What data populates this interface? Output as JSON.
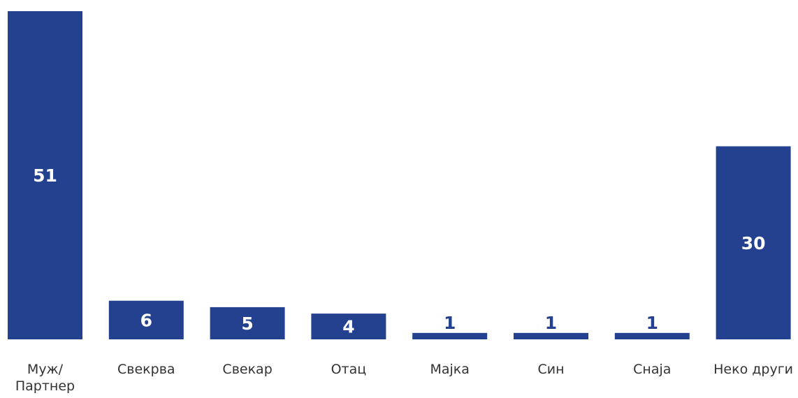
{
  "chart_data": {
    "type": "bar",
    "categories": [
      [
        "Муж/",
        "Партнер"
      ],
      [
        "Свекрва"
      ],
      [
        "Свекар"
      ],
      [
        "Отац"
      ],
      [
        "Мајка"
      ],
      [
        "Син"
      ],
      [
        "Снаја"
      ],
      [
        "Неко други"
      ]
    ],
    "values": [
      51,
      6,
      5,
      4,
      1,
      1,
      1,
      30
    ],
    "value_labels": [
      "51",
      "6",
      "5",
      "4",
      "1",
      "1",
      "1",
      "30"
    ],
    "ylim": [
      0,
      51
    ],
    "bar_color": "#23418f",
    "label_inside_color": "#ffffff",
    "label_outside_color": "#23418f",
    "title": "",
    "xlabel": "",
    "ylabel": "",
    "grid": false,
    "legend": "none"
  }
}
